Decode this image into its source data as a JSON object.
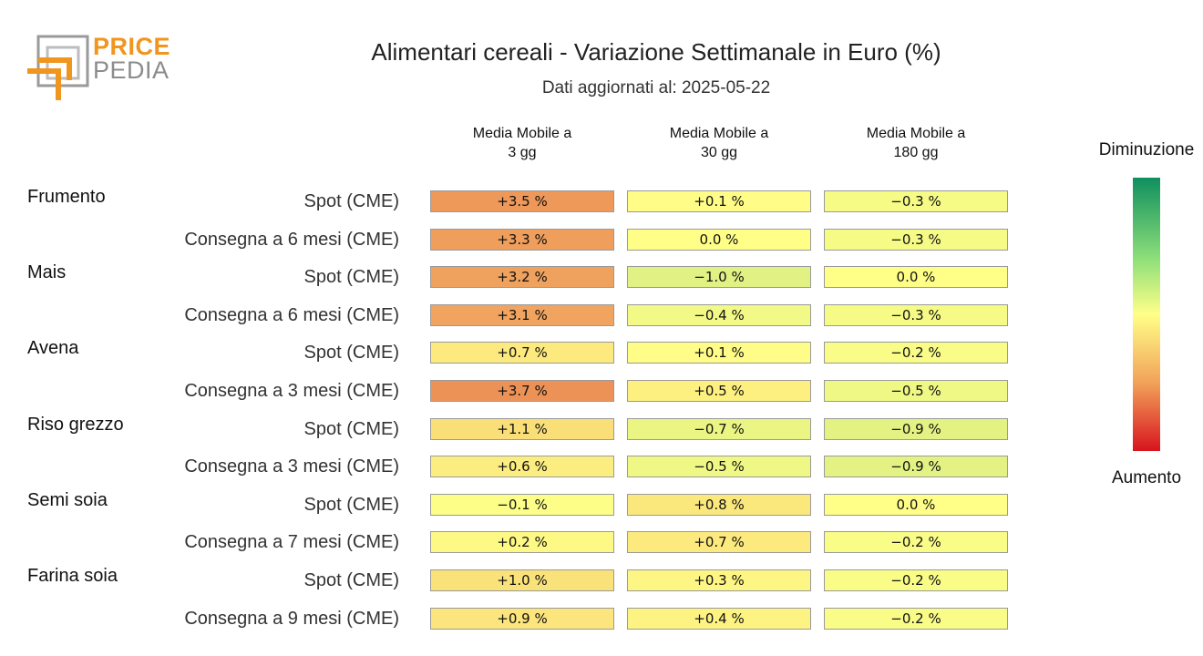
{
  "logo": {
    "line1": "PRICE",
    "line2": "PEDIA"
  },
  "title": "Alimentari cereali - Variazione Settimanale in Euro (%)",
  "subtitle": "Dati aggiornati al: 2025-05-22",
  "legend": {
    "top": "Diminuzione",
    "bottom": "Aumento"
  },
  "chart_data": {
    "type": "heatmap",
    "columns": [
      "Media Mobile a\n3 gg",
      "Media Mobile a\n30 gg",
      "Media Mobile a\n180 gg"
    ],
    "rows": [
      {
        "group": "Frumento",
        "label": "Spot (CME)",
        "values": [
          3.5,
          0.1,
          -0.3
        ],
        "texts": [
          "+3.5 %",
          "+0.1 %",
          "−0.3 %"
        ]
      },
      {
        "group": "",
        "label": "Consegna a 6 mesi (CME)",
        "values": [
          3.3,
          0.0,
          -0.3
        ],
        "texts": [
          "+3.3 %",
          "0.0 %",
          "−0.3 %"
        ]
      },
      {
        "group": "Mais",
        "label": "Spot (CME)",
        "values": [
          3.2,
          -1.0,
          0.0
        ],
        "texts": [
          "+3.2 %",
          "−1.0 %",
          "0.0 %"
        ]
      },
      {
        "group": "",
        "label": "Consegna a 6 mesi (CME)",
        "values": [
          3.1,
          -0.4,
          -0.3
        ],
        "texts": [
          "+3.1 %",
          "−0.4 %",
          "−0.3 %"
        ]
      },
      {
        "group": "Avena",
        "label": "Spot (CME)",
        "values": [
          0.7,
          0.1,
          -0.2
        ],
        "texts": [
          "+0.7 %",
          "+0.1 %",
          "−0.2 %"
        ]
      },
      {
        "group": "",
        "label": "Consegna a 3 mesi (CME)",
        "values": [
          3.7,
          0.5,
          -0.5
        ],
        "texts": [
          "+3.7 %",
          "+0.5 %",
          "−0.5 %"
        ]
      },
      {
        "group": "Riso grezzo",
        "label": "Spot (CME)",
        "values": [
          1.1,
          -0.7,
          -0.9
        ],
        "texts": [
          "+1.1 %",
          "−0.7 %",
          "−0.9 %"
        ]
      },
      {
        "group": "",
        "label": "Consegna a 3 mesi (CME)",
        "values": [
          0.6,
          -0.5,
          -0.9
        ],
        "texts": [
          "+0.6 %",
          "−0.5 %",
          "−0.9 %"
        ]
      },
      {
        "group": "Semi soia",
        "label": "Spot (CME)",
        "values": [
          -0.1,
          0.8,
          0.0
        ],
        "texts": [
          "−0.1 %",
          "+0.8 %",
          "0.0 %"
        ]
      },
      {
        "group": "",
        "label": "Consegna a 7 mesi (CME)",
        "values": [
          0.2,
          0.7,
          -0.2
        ],
        "texts": [
          "+0.2 %",
          "+0.7 %",
          "−0.2 %"
        ]
      },
      {
        "group": "Farina soia",
        "label": "Spot (CME)",
        "values": [
          1.0,
          0.3,
          -0.2
        ],
        "texts": [
          "+1.0 %",
          "+0.3 %",
          "−0.2 %"
        ]
      },
      {
        "group": "",
        "label": "Consegna a 9 mesi (CME)",
        "values": [
          0.9,
          0.4,
          -0.2
        ],
        "texts": [
          "+0.9 %",
          "+0.4 %",
          "−0.2 %"
        ]
      }
    ],
    "colorscale": {
      "negative_end": "#0f8f5e",
      "mid": "#ffff88",
      "positive_end": "#d7141e"
    }
  }
}
